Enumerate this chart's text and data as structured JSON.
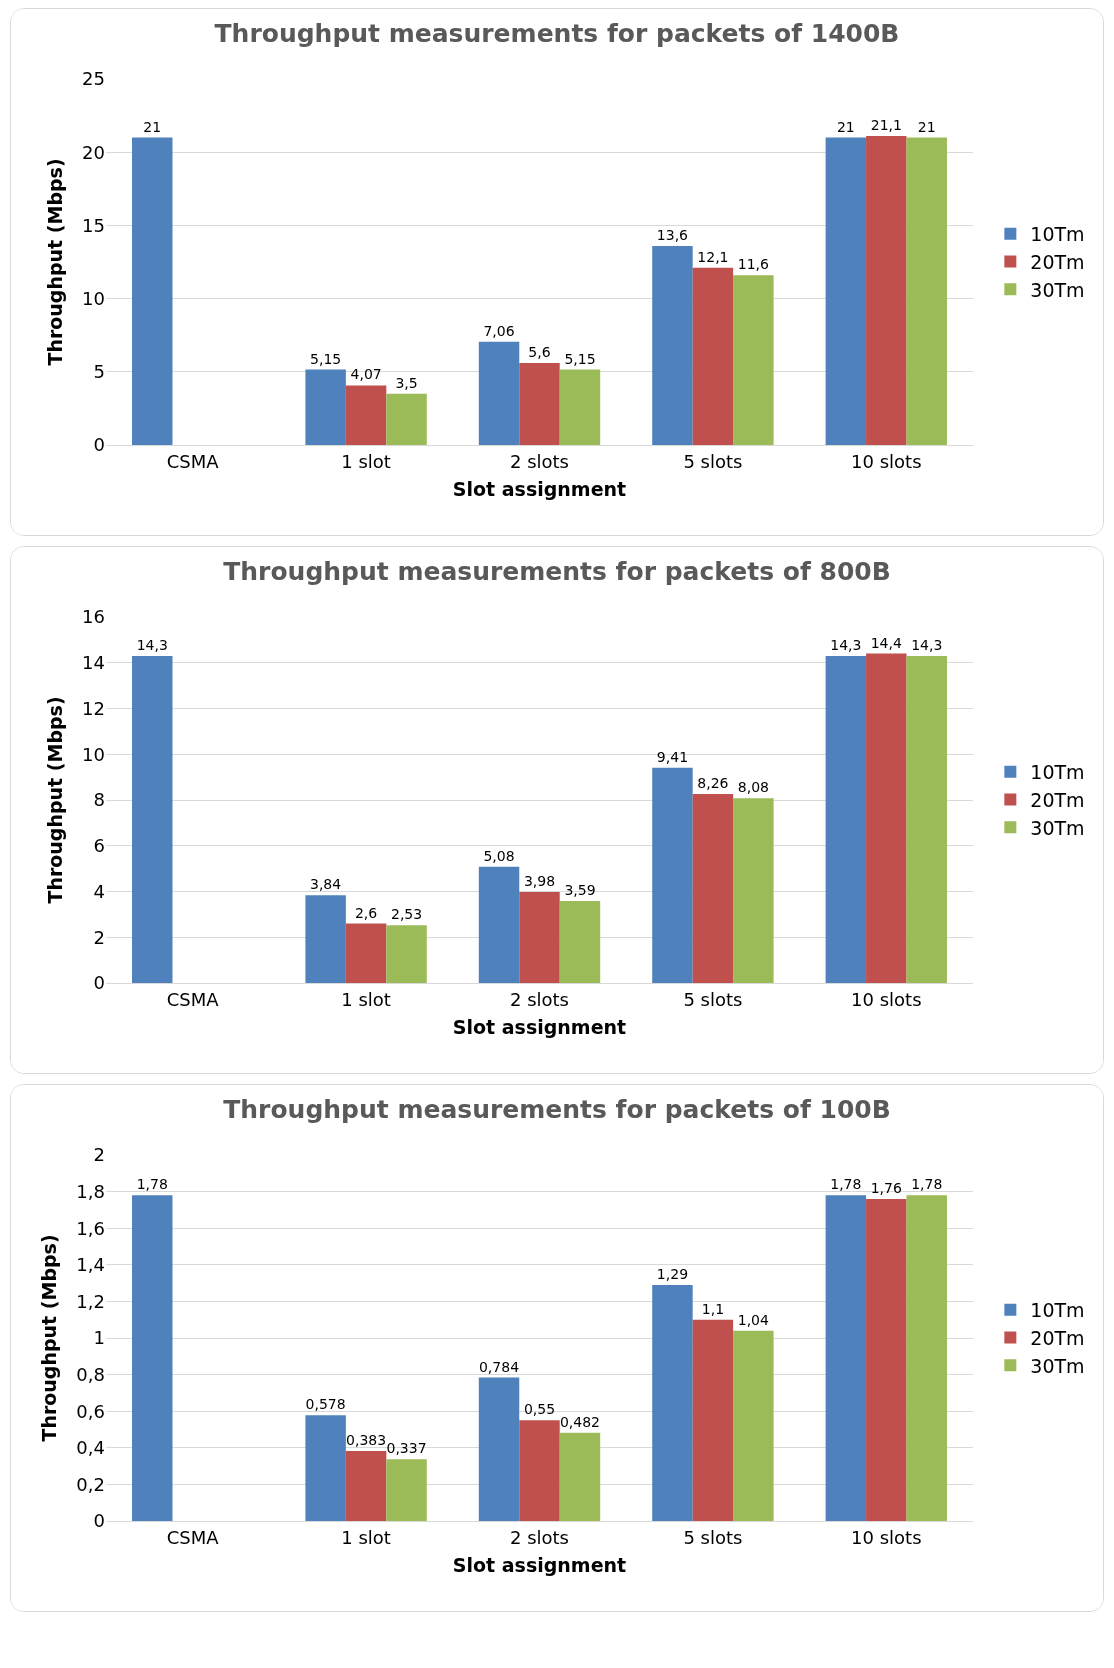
{
  "chart_data": [
    {
      "type": "bar",
      "title": "Throughput measurements for packets of 1400B",
      "xlabel": "Slot assignment",
      "ylabel": "Throughput (Mbps)",
      "categories": [
        "CSMA",
        "1 slot",
        "2 slots",
        "5 slots",
        "10 slots"
      ],
      "ylim": [
        0,
        25
      ],
      "yticks": [
        0,
        5,
        10,
        15,
        20,
        25
      ],
      "grid": "y",
      "legend": "right",
      "series": [
        {
          "name": "10Tm",
          "color": "#4f81bd",
          "values": [
            21,
            5.15,
            7.06,
            13.6,
            21
          ],
          "value_labels": [
            "21",
            "5,15",
            "7,06",
            "13,6",
            "21"
          ]
        },
        {
          "name": "20Tm",
          "color": "#c0504d",
          "values": [
            null,
            4.07,
            5.6,
            12.1,
            21.1
          ],
          "value_labels": [
            null,
            "4,07",
            "5,6",
            "12,1",
            "21,1"
          ]
        },
        {
          "name": "30Tm",
          "color": "#9bbb59",
          "values": [
            null,
            3.5,
            5.15,
            11.6,
            21
          ],
          "value_labels": [
            null,
            "3,5",
            "5,15",
            "11,6",
            "21"
          ]
        }
      ]
    },
    {
      "type": "bar",
      "title": "Throughput measurements for packets of 800B",
      "xlabel": "Slot assignment",
      "ylabel": "Throughput (Mbps)",
      "categories": [
        "CSMA",
        "1 slot",
        "2 slots",
        "5 slots",
        "10 slots"
      ],
      "ylim": [
        0,
        16
      ],
      "yticks": [
        0,
        2,
        4,
        6,
        8,
        10,
        12,
        14,
        16
      ],
      "grid": "y",
      "legend": "right",
      "series": [
        {
          "name": "10Tm",
          "color": "#4f81bd",
          "values": [
            14.3,
            3.84,
            5.08,
            9.41,
            14.3
          ],
          "value_labels": [
            "14,3",
            "3,84",
            "5,08",
            "9,41",
            "14,3"
          ]
        },
        {
          "name": "20Tm",
          "color": "#c0504d",
          "values": [
            null,
            2.6,
            3.98,
            8.26,
            14.4
          ],
          "value_labels": [
            null,
            "2,6",
            "3,98",
            "8,26",
            "14,4"
          ]
        },
        {
          "name": "30Tm",
          "color": "#9bbb59",
          "values": [
            null,
            2.53,
            3.59,
            8.08,
            14.3
          ],
          "value_labels": [
            null,
            "2,53",
            "3,59",
            "8,08",
            "14,3"
          ]
        }
      ]
    },
    {
      "type": "bar",
      "title": "Throughput measurements for packets of 100B",
      "xlabel": "Slot assignment",
      "ylabel": "Throughput (Mbps)",
      "categories": [
        "CSMA",
        "1 slot",
        "2 slots",
        "5 slots",
        "10 slots"
      ],
      "ylim": [
        0,
        2
      ],
      "yticks": [
        0,
        {
          "value": 0.2,
          "label": "0,2"
        },
        {
          "value": 0.4,
          "label": "0,4"
        },
        {
          "value": 0.6,
          "label": "0,6"
        },
        {
          "value": 0.8,
          "label": "0,8"
        },
        1,
        {
          "value": 1.2,
          "label": "1,2"
        },
        {
          "value": 1.4,
          "label": "1,4"
        },
        {
          "value": 1.6,
          "label": "1,6"
        },
        {
          "value": 1.8,
          "label": "1,8"
        },
        2
      ],
      "grid": "y",
      "legend": "right",
      "series": [
        {
          "name": "10Tm",
          "color": "#4f81bd",
          "values": [
            1.78,
            0.578,
            0.784,
            1.29,
            1.78
          ],
          "value_labels": [
            "1,78",
            "0,578",
            "0,784",
            "1,29",
            "1,78"
          ]
        },
        {
          "name": "20Tm",
          "color": "#c0504d",
          "values": [
            null,
            0.383,
            0.55,
            1.1,
            1.76
          ],
          "value_labels": [
            null,
            "0,383",
            "0,55",
            "1,1",
            "1,76"
          ]
        },
        {
          "name": "30Tm",
          "color": "#9bbb59",
          "values": [
            null,
            0.337,
            0.482,
            1.04,
            1.78
          ],
          "value_labels": [
            null,
            "0,337",
            "0,482",
            "1,04",
            "1,78"
          ]
        }
      ]
    }
  ]
}
